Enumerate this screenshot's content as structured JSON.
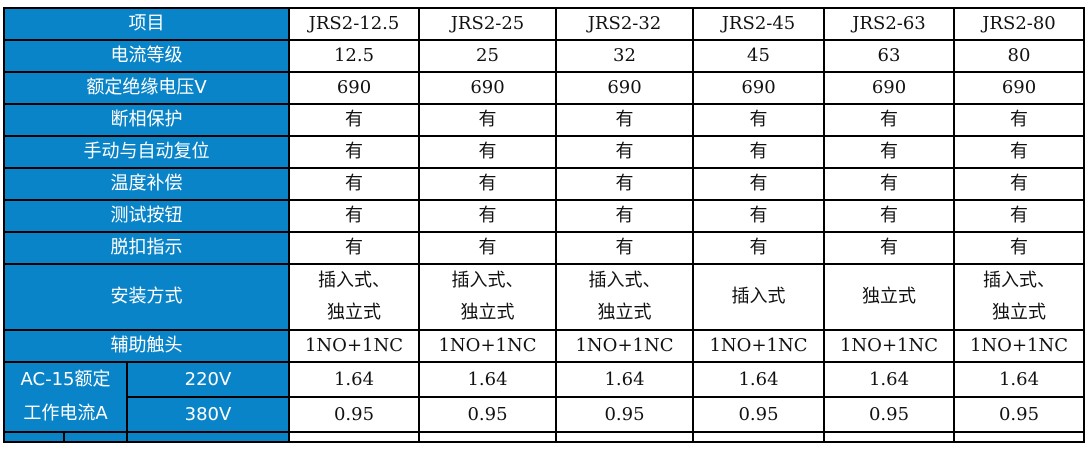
{
  "header": {
    "label": "项目",
    "models": [
      "JRS2-12.5",
      "JRS2-25",
      "JRS2-32",
      "JRS2-45",
      "JRS2-63",
      "JRS2-80"
    ]
  },
  "rows": [
    {
      "label": "电流等级",
      "values": [
        "12.5",
        "25",
        "32",
        "45",
        "63",
        "80"
      ]
    },
    {
      "label": "额定绝缘电压V",
      "values": [
        "690",
        "690",
        "690",
        "690",
        "690",
        "690"
      ]
    },
    {
      "label": "断相保护",
      "values": [
        "有",
        "有",
        "有",
        "有",
        "有",
        "有"
      ]
    },
    {
      "label": "手动与自动复位",
      "values": [
        "有",
        "有",
        "有",
        "有",
        "有",
        "有"
      ]
    },
    {
      "label": "温度补偿",
      "values": [
        "有",
        "有",
        "有",
        "有",
        "有",
        "有"
      ]
    },
    {
      "label": "测试按钮",
      "values": [
        "有",
        "有",
        "有",
        "有",
        "有",
        "有"
      ]
    },
    {
      "label": "脱扣指示",
      "values": [
        "有",
        "有",
        "有",
        "有",
        "有",
        "有"
      ]
    }
  ],
  "install": {
    "label": "安装方式",
    "values": [
      [
        "插入式、",
        "独立式"
      ],
      [
        "插入式、",
        "独立式"
      ],
      [
        "插入式、",
        "独立式"
      ],
      [
        "插入式",
        ""
      ],
      [
        "独立式",
        ""
      ],
      [
        "插入式、",
        "独立式"
      ]
    ]
  },
  "aux": {
    "label": "辅助触头",
    "values": [
      "1NO+1NC",
      "1NO+1NC",
      "1NO+1NC",
      "1NO+1NC",
      "1NO+1NC",
      "1NO+1NC"
    ]
  },
  "ac15": {
    "label_line1": "AC-15额定",
    "label_line2": "工作电流A",
    "rows": [
      {
        "voltage": "220V",
        "values": [
          "1.64",
          "1.64",
          "1.64",
          "1.64",
          "1.64",
          "1.64"
        ]
      },
      {
        "voltage": "380V",
        "values": [
          "0.95",
          "0.95",
          "0.95",
          "0.95",
          "0.95",
          "0.95"
        ]
      }
    ]
  }
}
